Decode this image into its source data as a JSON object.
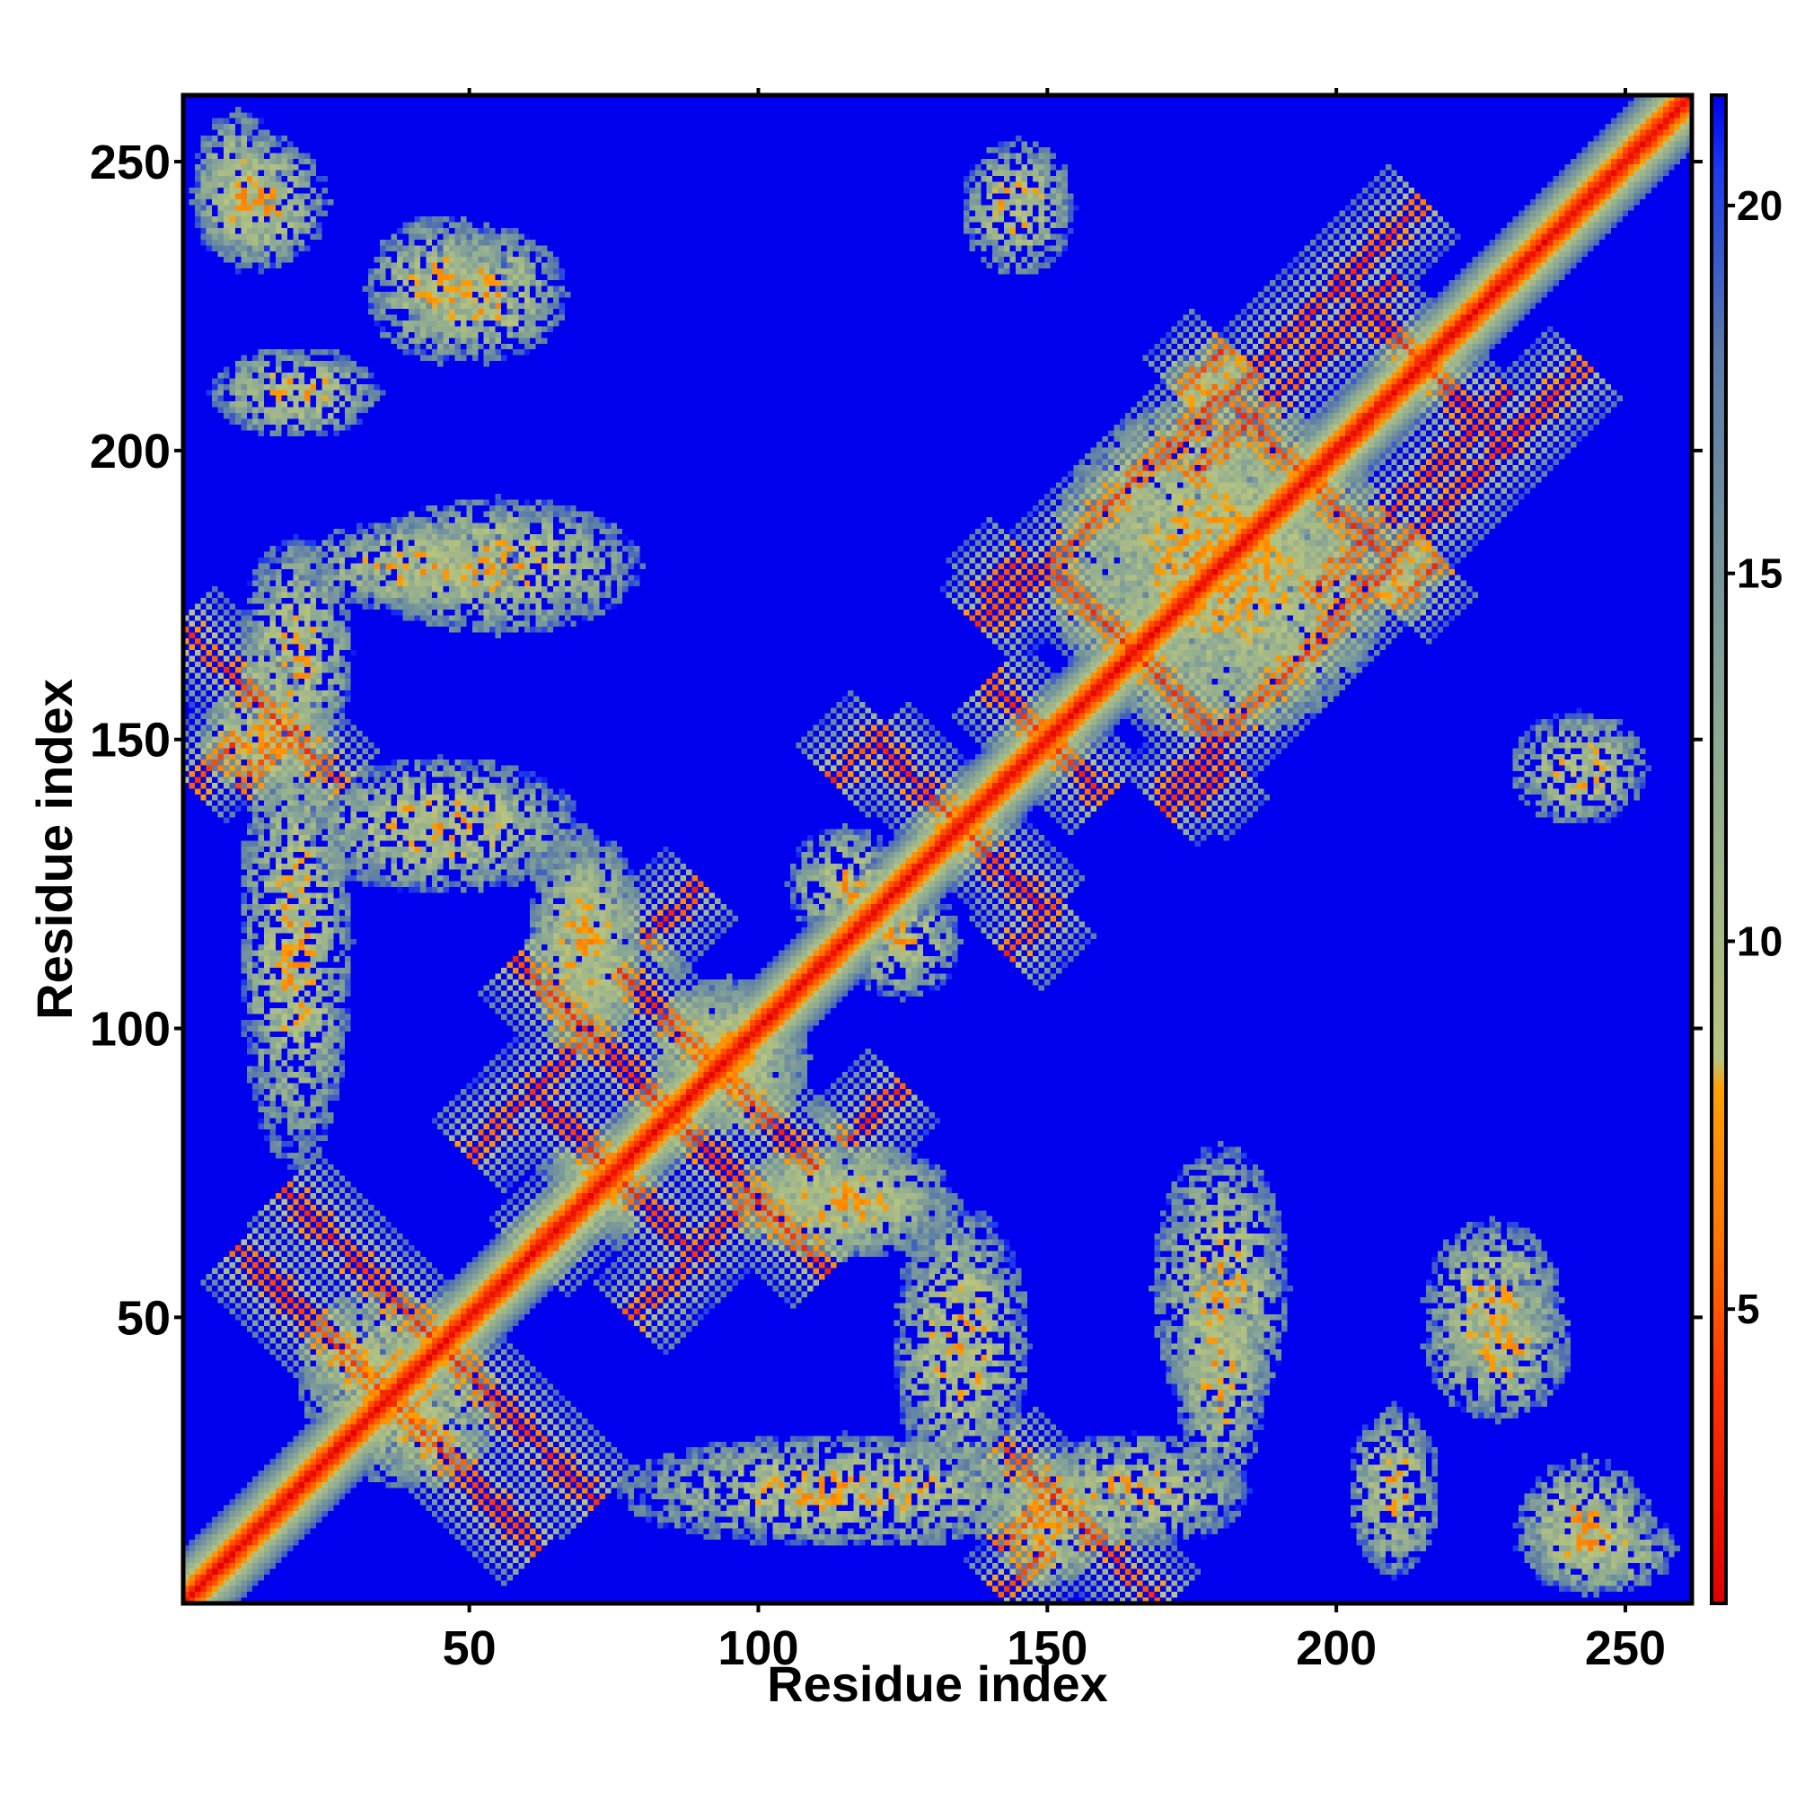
{
  "chart_data": {
    "type": "heatmap",
    "title": "",
    "xlabel": "Residue index",
    "ylabel": "Residue index",
    "n_residues": 261,
    "xlim": [
      1,
      261
    ],
    "ylim": [
      1,
      261
    ],
    "x_ticks": [
      50,
      100,
      150,
      200,
      250
    ],
    "y_ticks": [
      50,
      100,
      150,
      200,
      250
    ],
    "x_tick_labels": [
      "50",
      "100",
      "150",
      "200",
      "250"
    ],
    "y_tick_labels": [
      "50",
      "100",
      "150",
      "200",
      "250"
    ],
    "colorbar": {
      "ticks": [
        5,
        10,
        15,
        20
      ],
      "tick_labels": [
        "5",
        "10",
        "15",
        "20"
      ],
      "range": [
        1,
        21.5
      ],
      "stops": [
        {
          "value": 1,
          "color": "#e00000"
        },
        {
          "value": 4,
          "color": "#ff3300"
        },
        {
          "value": 6,
          "color": "#ff7700"
        },
        {
          "value": 8,
          "color": "#ffa000"
        },
        {
          "value": 8.4,
          "color": "#b8c47e"
        },
        {
          "value": 13,
          "color": "#8aa894"
        },
        {
          "value": 18,
          "color": "#5a7aa8"
        },
        {
          "value": 20.5,
          "color": "#1a3aee"
        },
        {
          "value": 21.5,
          "color": "#0000ee"
        }
      ]
    },
    "background_color": "#0000ee",
    "diagonal_color": "#e00000",
    "contact_bands": [
      {
        "type": "anti",
        "sum": 72,
        "from": 12,
        "to": 62
      },
      {
        "type": "anti",
        "sum": 90,
        "from": 20,
        "to": 72
      },
      {
        "type": "anti",
        "sum": 170,
        "from": 60,
        "to": 112
      },
      {
        "type": "anti",
        "sum": 150,
        "from": 64,
        "to": 88
      },
      {
        "type": "anti",
        "sum": 186,
        "from": 78,
        "to": 110
      },
      {
        "type": "anti",
        "sum": 170,
        "from": 142,
        "to": 170
      },
      {
        "type": "anti",
        "sum": 270,
        "from": 120,
        "to": 150
      },
      {
        "type": "anti",
        "sum": 300,
        "from": 140,
        "to": 160
      },
      {
        "type": "anti",
        "sum": 330,
        "from": 150,
        "to": 180
      },
      {
        "type": "anti",
        "sum": 390,
        "from": 185,
        "to": 210
      },
      {
        "type": "anti",
        "sum": 430,
        "from": 205,
        "to": 230
      },
      {
        "type": "par",
        "off": 132,
        "from": 10,
        "to": 20
      },
      {
        "type": "par",
        "off": 1,
        "from": 60,
        "to": 72
      },
      {
        "type": "par",
        "off": 130,
        "from": 142,
        "to": 152
      },
      {
        "type": "par",
        "off": 30,
        "from": 140,
        "to": 180
      },
      {
        "type": "par",
        "off": 28,
        "from": 170,
        "to": 215
      },
      {
        "type": "par",
        "off": -36,
        "from": 175,
        "to": 182
      },
      {
        "type": "par",
        "off": -37,
        "from": 210,
        "to": 218
      },
      {
        "type": "par",
        "off": -30,
        "from": 143,
        "to": 152
      },
      {
        "type": "par",
        "off": -32,
        "from": 170,
        "to": 180
      },
      {
        "type": "par",
        "off": -140,
        "from": 142,
        "to": 150
      },
      {
        "type": "par",
        "off": -35,
        "from": 115,
        "to": 125
      },
      {
        "type": "par",
        "off": 28,
        "from": 50,
        "to": 70
      },
      {
        "type": "par",
        "off": -20,
        "from": 195,
        "to": 230
      }
    ],
    "contact_blobs": [
      {
        "x": 14,
        "y": 243,
        "rx": 12,
        "ry": 12
      },
      {
        "x": 53,
        "y": 227,
        "rx": 14,
        "ry": 12
      },
      {
        "x": 35,
        "y": 40,
        "rx": 15,
        "ry": 15
      },
      {
        "x": 95,
        "y": 95,
        "rx": 14,
        "ry": 14
      },
      {
        "x": 145,
        "y": 242,
        "rx": 10,
        "ry": 12
      },
      {
        "x": 180,
        "y": 180,
        "rx": 30,
        "ry": 30
      },
      {
        "x": 228,
        "y": 45,
        "rx": 13,
        "ry": 13
      },
      {
        "x": 245,
        "y": 10,
        "rx": 14,
        "ry": 8
      },
      {
        "x": 70,
        "y": 115,
        "rx": 10,
        "ry": 20
      },
      {
        "x": 115,
        "y": 70,
        "rx": 20,
        "ry": 10
      },
      {
        "x": 20,
        "y": 115,
        "rx": 10,
        "ry": 40
      },
      {
        "x": 20,
        "y": 165,
        "rx": 10,
        "ry": 20
      },
      {
        "x": 55,
        "y": 180,
        "rx": 25,
        "ry": 12
      },
      {
        "x": 150,
        "y": 15,
        "rx": 10,
        "ry": 12
      },
      {
        "x": 180,
        "y": 40,
        "rx": 8,
        "ry": 20
      },
      {
        "x": 210,
        "y": 20,
        "rx": 8,
        "ry": 15
      },
      {
        "x": 135,
        "y": 45,
        "rx": 12,
        "ry": 25
      },
      {
        "x": 125,
        "y": 115,
        "rx": 10,
        "ry": 10
      }
    ]
  }
}
